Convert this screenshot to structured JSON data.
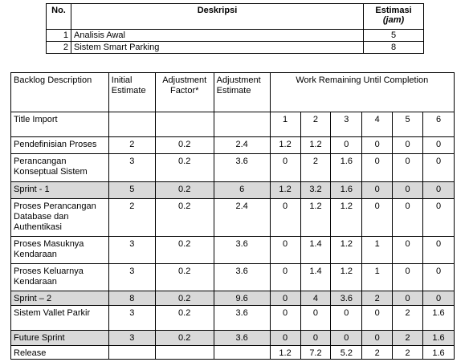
{
  "table1": {
    "headers": {
      "no": "No.",
      "deskripsi": "Deskripsi",
      "estimasi": "Estimasi",
      "unit": "(jam)"
    },
    "rows": [
      {
        "no": "1",
        "desc": "Analisis Awal",
        "est": "5"
      },
      {
        "no": "2",
        "desc": "Sistem Smart Parking",
        "est": "8"
      }
    ]
  },
  "table2": {
    "headers": {
      "backlog": "Backlog Description",
      "initial": "Initial Estimate",
      "factor": "Adjustment Factor*",
      "adjust": "Adjustment Estimate",
      "work": "Work Remaining Until Completion"
    },
    "rows": [
      {
        "desc": "Title Import",
        "ini": "",
        "fac": "",
        "adj": "",
        "s": [
          "1",
          "2",
          "3",
          "4",
          "5",
          "6"
        ],
        "shade": false
      },
      {
        "desc": "Pendefinisian Proses",
        "ini": "2",
        "fac": "0.2",
        "adj": "2.4",
        "s": [
          "1.2",
          "1.2",
          "0",
          "0",
          "0",
          "0"
        ],
        "shade": false
      },
      {
        "desc": "Perancangan Konseptual Sistem",
        "ini": "3",
        "fac": "0.2",
        "adj": "3.6",
        "s": [
          "0",
          "2",
          "1.6",
          "0",
          "0",
          "0"
        ],
        "shade": false
      },
      {
        "desc": "Sprint - 1",
        "ini": "5",
        "fac": "0.2",
        "adj": "6",
        "s": [
          "1.2",
          "3.2",
          "1.6",
          "0",
          "0",
          "0"
        ],
        "shade": true
      },
      {
        "desc": "Proses Perancangan Database dan Authentikasi",
        "ini": "2",
        "fac": "0.2",
        "adj": "2.4",
        "s": [
          "0",
          "1.2",
          "1.2",
          "0",
          "0",
          "0"
        ],
        "shade": false
      },
      {
        "desc": "Proses Masuknya Kendaraan",
        "ini": "3",
        "fac": "0.2",
        "adj": "3.6",
        "s": [
          "0",
          "1.4",
          "1.2",
          "1",
          "0",
          "0"
        ],
        "shade": false
      },
      {
        "desc": "Proses Keluarnya Kendaraan",
        "ini": "3",
        "fac": "0.2",
        "adj": "3.6",
        "s": [
          "0",
          "1.4",
          "1.2",
          "1",
          "0",
          "0"
        ],
        "shade": false
      },
      {
        "desc": "Sprint – 2",
        "ini": "8",
        "fac": "0.2",
        "adj": "9.6",
        "s": [
          "0",
          "4",
          "3.6",
          "2",
          "0",
          "0"
        ],
        "shade": true
      },
      {
        "desc": "Sistem Vallet Parkir",
        "ini": "3",
        "fac": "0.2",
        "adj": "3.6",
        "s": [
          "0",
          "0",
          "0",
          "0",
          "2",
          "1.6"
        ],
        "shade": false
      },
      {
        "desc": "Future Sprint",
        "ini": "3",
        "fac": "0.2",
        "adj": "3.6",
        "s": [
          "0",
          "0",
          "0",
          "0",
          "2",
          "1.6"
        ],
        "shade": true
      },
      {
        "desc": "Release",
        "ini": "",
        "fac": "",
        "adj": "",
        "s": [
          "1.2",
          "7.2",
          "5.2",
          "2",
          "2",
          "1.6"
        ],
        "shade": false
      }
    ]
  }
}
